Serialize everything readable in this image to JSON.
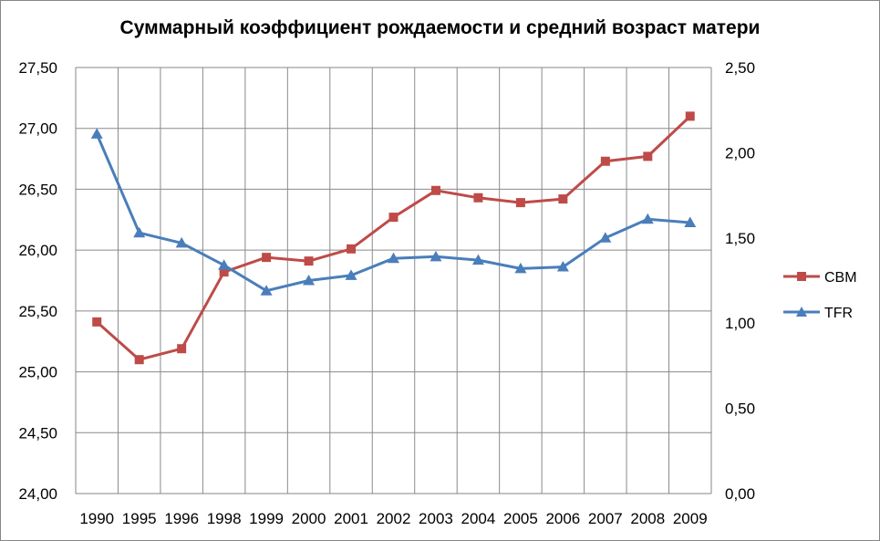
{
  "chart_data": {
    "type": "line",
    "title": "Суммарный коэффициент рождаемости и средний возраст матери",
    "categories": [
      "1990",
      "1995",
      "1996",
      "1998",
      "1999",
      "2000",
      "2001",
      "2002",
      "2003",
      "2004",
      "2005",
      "2006",
      "2007",
      "2008",
      "2009"
    ],
    "series": [
      {
        "name": "СВМ",
        "axis": "left",
        "color": "#be4b48",
        "marker": "square",
        "values": [
          25.41,
          25.1,
          25.19,
          25.82,
          25.94,
          25.91,
          26.01,
          26.27,
          26.49,
          26.43,
          26.39,
          26.42,
          26.73,
          26.77,
          27.1
        ]
      },
      {
        "name": "TFR",
        "axis": "right",
        "color": "#4a7ebb",
        "marker": "triangle",
        "values": [
          2.11,
          1.53,
          1.47,
          1.34,
          1.19,
          1.25,
          1.28,
          1.38,
          1.39,
          1.37,
          1.32,
          1.33,
          1.5,
          1.61,
          1.59
        ]
      }
    ],
    "ylim_left": [
      24.0,
      27.5
    ],
    "ylim_right": [
      0.0,
      2.5
    ],
    "yticks_left": [
      "24,00",
      "24,50",
      "25,00",
      "25,50",
      "26,00",
      "26,50",
      "27,00",
      "27,50"
    ],
    "yticks_right": [
      "0,00",
      "0,50",
      "1,00",
      "1,50",
      "2,00",
      "2,50"
    ],
    "grid": true,
    "legend_position": "right"
  }
}
